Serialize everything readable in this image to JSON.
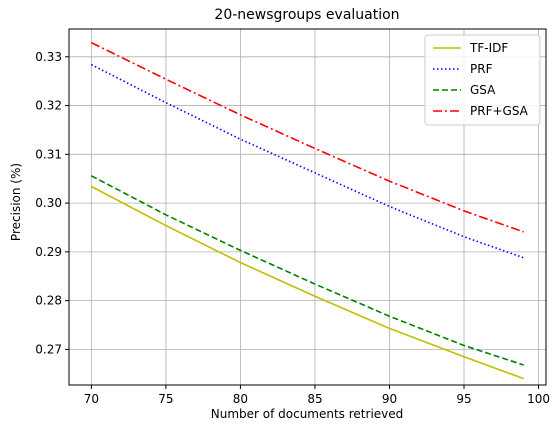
{
  "chart_data": {
    "type": "line",
    "title": "20-newsgroups evaluation",
    "xlabel": "Number of documents retrieved",
    "ylabel": "Precision (%)",
    "xlim": [
      68.5,
      100.5
    ],
    "ylim": [
      0.2627,
      0.3357
    ],
    "xticks": [
      70,
      75,
      80,
      85,
      90,
      95,
      100
    ],
    "xtick_labels": [
      "70",
      "75",
      "80",
      "85",
      "90",
      "95",
      "100"
    ],
    "yticks": [
      0.27,
      0.28,
      0.29,
      0.3,
      0.31,
      0.32,
      0.33
    ],
    "ytick_labels": [
      "0.27",
      "0.28",
      "0.29",
      "0.30",
      "0.31",
      "0.32",
      "0.33"
    ],
    "grid": true,
    "legend_position": "top-right",
    "x": [
      70,
      75,
      80,
      85,
      90,
      95,
      99
    ],
    "series": [
      {
        "name": "TF-IDF",
        "color": "#bfbf00",
        "dash": "solid",
        "values": [
          0.3034,
          0.2954,
          0.2878,
          0.2809,
          0.2743,
          0.2685,
          0.264
        ]
      },
      {
        "name": "PRF",
        "color": "#0000ff",
        "dash": "dotted",
        "values": [
          0.3284,
          0.3206,
          0.3131,
          0.3062,
          0.2993,
          0.2931,
          0.2888
        ]
      },
      {
        "name": "GSA",
        "color": "#008000",
        "dash": "dashed",
        "values": [
          0.3056,
          0.2976,
          0.2903,
          0.2834,
          0.2768,
          0.2708,
          0.2668
        ]
      },
      {
        "name": "PRF+GSA",
        "color": "#ff0000",
        "dash": "dashdot",
        "values": [
          0.3329,
          0.3254,
          0.3181,
          0.3112,
          0.3045,
          0.2984,
          0.2941
        ]
      }
    ]
  }
}
